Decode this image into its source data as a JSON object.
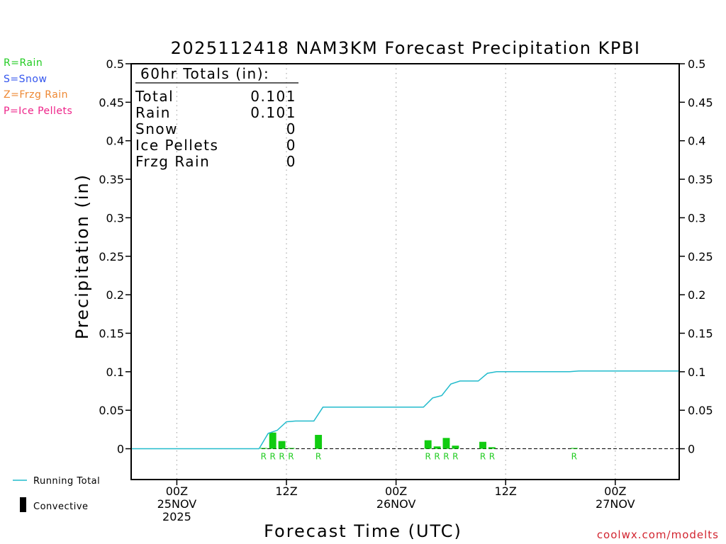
{
  "chart_data": {
    "type": "bar",
    "title": "2025112418 NAM3KM Forecast Precipitation KPBI",
    "xlabel": "Forecast Time (UTC)",
    "ylabel": "Precipitation (in)",
    "ylim": [
      -0.04,
      0.5
    ],
    "yticks": [
      0,
      0.05,
      0.1,
      0.15,
      0.2,
      0.25,
      0.3,
      0.35,
      0.4,
      0.45,
      0.5
    ],
    "xlim_hours": [
      -5,
      55
    ],
    "x_ticks": [
      {
        "hour": 0,
        "lines": [
          "00Z",
          "25NOV",
          "2025"
        ]
      },
      {
        "hour": 12,
        "lines": [
          "12Z"
        ]
      },
      {
        "hour": 24,
        "lines": [
          "00Z",
          "26NOV"
        ]
      },
      {
        "hour": 36,
        "lines": [
          "12Z"
        ]
      },
      {
        "hour": 48,
        "lines": [
          "00Z",
          "27NOV"
        ]
      }
    ],
    "totals_box": {
      "header": "60hr Totals (in):",
      "rows": [
        {
          "label": "Total",
          "value": "0.101"
        },
        {
          "label": "Rain",
          "value": "0.101"
        },
        {
          "label": "Snow",
          "value": "0"
        },
        {
          "label": "Ice Pellets",
          "value": "0"
        },
        {
          "label": "Frzg Rain",
          "value": "0"
        }
      ]
    },
    "precip_type_legend": [
      {
        "text": "R=Rain",
        "color": "#22cc22"
      },
      {
        "text": "S=Snow",
        "color": "#3355ee"
      },
      {
        "text": "Z=Frzg Rain",
        "color": "#ee8833"
      },
      {
        "text": "P=Ice Pellets",
        "color": "#ee2288"
      }
    ],
    "series_legend": [
      {
        "text": "Running Total",
        "kind": "line",
        "color": "#22bbcc"
      },
      {
        "text": "Convective",
        "kind": "bar",
        "color": "#000000"
      }
    ],
    "bars": [
      {
        "hour": 5,
        "value": 0.0
      },
      {
        "hour": 10,
        "value": 0.001
      },
      {
        "hour": 11,
        "value": 0.021
      },
      {
        "hour": 12,
        "value": 0.01
      },
      {
        "hour": 13,
        "value": 0.001
      },
      {
        "hour": 16,
        "value": 0.018
      },
      {
        "hour": 28,
        "value": 0.011
      },
      {
        "hour": 29,
        "value": 0.003
      },
      {
        "hour": 30,
        "value": 0.014
      },
      {
        "hour": 31,
        "value": 0.004
      },
      {
        "hour": 34,
        "value": 0.009
      },
      {
        "hour": 35,
        "value": 0.002
      },
      {
        "hour": 44,
        "value": 0.001
      }
    ],
    "bar_color": "#11cc11",
    "type_markers": [
      {
        "hour": 9.5,
        "label": "R"
      },
      {
        "hour": 10.5,
        "label": "R"
      },
      {
        "hour": 11.5,
        "label": "R"
      },
      {
        "hour": 12.5,
        "label": "R"
      },
      {
        "hour": 15.5,
        "label": "R"
      },
      {
        "hour": 27.5,
        "label": "R"
      },
      {
        "hour": 28.5,
        "label": "R"
      },
      {
        "hour": 29.5,
        "label": "R"
      },
      {
        "hour": 30.5,
        "label": "R"
      },
      {
        "hour": 33.5,
        "label": "R"
      },
      {
        "hour": 34.5,
        "label": "R"
      },
      {
        "hour": 43.5,
        "label": "R"
      }
    ],
    "running_total": {
      "x": [
        -5,
        9,
        10,
        11,
        12,
        13,
        14,
        15,
        16,
        17,
        18,
        19,
        20,
        21,
        22,
        23,
        24,
        25,
        26,
        27,
        28,
        29,
        30,
        31,
        32,
        33,
        34,
        35,
        36,
        37,
        38,
        39,
        40,
        41,
        42,
        43,
        44,
        45,
        46,
        47,
        48,
        49,
        50,
        51,
        52,
        53,
        54,
        55
      ],
      "y": [
        0,
        0,
        0.02,
        0.024,
        0.035,
        0.036,
        0.036,
        0.036,
        0.054,
        0.054,
        0.054,
        0.054,
        0.054,
        0.054,
        0.054,
        0.054,
        0.054,
        0.054,
        0.054,
        0.054,
        0.066,
        0.069,
        0.084,
        0.088,
        0.088,
        0.088,
        0.098,
        0.1,
        0.1,
        0.1,
        0.1,
        0.1,
        0.1,
        0.1,
        0.1,
        0.1,
        0.101,
        0.101,
        0.101,
        0.101,
        0.101,
        0.101,
        0.101,
        0.101,
        0.101,
        0.101,
        0.101,
        0.101
      ],
      "color": "#22bbcc"
    }
  },
  "watermark": "coolwx.com/modelts"
}
